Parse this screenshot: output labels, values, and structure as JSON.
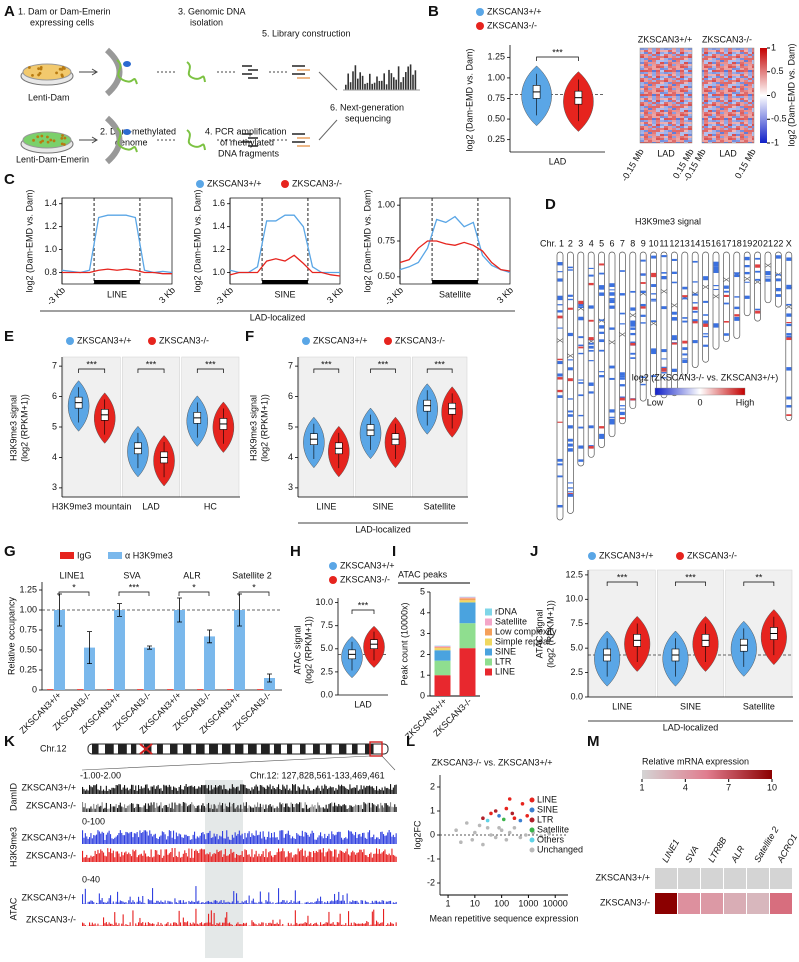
{
  "panels": {
    "A": {
      "letter": "A",
      "texts": [
        "1. Dam or Dam-Emerin",
        "expressing cells",
        "3. Genomic DNA",
        "isolation",
        "5. Library construction",
        "Lenti-Dam",
        "Lenti-Dam-Emerin",
        "6. Next-generation",
        "sequencing",
        "2. Dam-methylated",
        "genome",
        "4. PCR amplification",
        "of methylated",
        "DNA fragments"
      ]
    },
    "B": {
      "letter": "B",
      "ylabel": "log2 (Dam-EMD vs. Dam)",
      "ylim": [
        0.1,
        1.4
      ],
      "yticks": [
        0.25,
        {
          "value": 0.5,
          "label": "0.50"
        },
        0.75,
        {
          "value": 1,
          "label": "1.00"
        },
        1.25
      ],
      "categories": [
        "LAD"
      ],
      "refline": 0.8,
      "series": [
        {
          "name": "ZKSCAN3+/+",
          "color": "#5aa6e6",
          "values": [
            0.83
          ]
        },
        {
          "name": "ZKSCAN3-/-",
          "color": "#e6241e",
          "values": [
            0.76
          ]
        }
      ],
      "sig": [
        "***"
      ],
      "heatmap_titles": [
        "ZKSCAN3+/+",
        "ZKSCAN3-/-"
      ],
      "heatmap_xlabels": [
        "-0.15 Mb",
        "LAD",
        "0.15 Mb"
      ],
      "cbar_ticks": [
        1,
        0.5,
        0,
        -0.5,
        -1
      ],
      "cbar_lim": [
        -1,
        1
      ],
      "cbar_label": "log2 (Dam-EMD vs. Dam)"
    },
    "C": {
      "letter": "C",
      "ylabel": "log2 (Dam-EMD vs. Dam)",
      "xend": [
        "-3 Kb",
        "3 Kb"
      ],
      "footer": "LAD-localized",
      "legend": [
        {
          "name": "ZKSCAN3+/+",
          "color": "#5aa6e6"
        },
        {
          "name": "ZKSCAN3-/-",
          "color": "#e6241e"
        }
      ],
      "plots": [
        {
          "name": "LINE",
          "ylim": [
            0.7,
            1.45
          ],
          "yticks": [
            0.8,
            {
              "value": 1,
              "label": "1.0"
            },
            1.2,
            1.4
          ],
          "series": [
            [
              0.82,
              0.81,
              0.8,
              0.82,
              1.28,
              1.3,
              1.3,
              1.3,
              1.28,
              0.82,
              0.8,
              0.81,
              0.8
            ],
            [
              0.8,
              0.8,
              0.8,
              0.8,
              0.82,
              0.83,
              0.82,
              0.83,
              0.82,
              0.8,
              0.8,
              0.79,
              0.79
            ]
          ]
        },
        {
          "name": "SINE",
          "ylim": [
            0.9,
            1.65
          ],
          "yticks": [
            {
              "value": 1,
              "label": "1.0"
            },
            1.2,
            1.4,
            1.6
          ],
          "series": [
            [
              1.02,
              1.0,
              1.0,
              1.05,
              1.45,
              1.45,
              1.5,
              1.5,
              1.4,
              1.05,
              1.0,
              1.0,
              1.0
            ],
            [
              0.98,
              1.0,
              1.0,
              1.0,
              1.1,
              1.12,
              1.1,
              1.15,
              1.08,
              1.0,
              1.0,
              0.98,
              0.97
            ]
          ]
        },
        {
          "name": "Satellite",
          "ylim": [
            0.45,
            1.05
          ],
          "yticks": [
            {
              "value": 0.5,
              "label": "0.50"
            },
            0.75,
            {
              "value": 1,
              "label": "1.00"
            }
          ],
          "series": [
            [
              0.55,
              0.57,
              0.6,
              0.7,
              0.9,
              0.88,
              0.92,
              0.85,
              0.88,
              0.65,
              0.58,
              0.55,
              0.53
            ],
            [
              0.6,
              0.62,
              0.7,
              0.75,
              0.75,
              0.73,
              0.72,
              0.74,
              0.72,
              0.68,
              0.6,
              0.55,
              0.54
            ]
          ]
        }
      ]
    },
    "D": {
      "letter": "D",
      "title": "H3K9me3 signal",
      "chromosomes": [
        "Chr. 1",
        "2",
        "3",
        "4",
        "5",
        "6",
        "7",
        "8",
        "9",
        "10",
        "11",
        "12",
        "13",
        "14",
        "15",
        "16",
        "17",
        "18",
        "19",
        "20",
        "21",
        "22",
        "X"
      ],
      "cbar_label": "log2 (ZKSCAN3-/- vs. ZKSCAN3+/+)",
      "cbar_labels": [
        "Low",
        "0",
        "High"
      ]
    },
    "E": {
      "letter": "E",
      "ylabel": [
        "H3K9me3 signal",
        "(log2 (RPKM+1))"
      ],
      "ylim": [
        2.7,
        7.3
      ],
      "yticks": [
        3,
        4,
        5,
        6,
        7
      ],
      "categories": [
        "H3K9me3 mountain",
        "LAD",
        "HC"
      ],
      "series": [
        {
          "name": "ZKSCAN3+/+",
          "color": "#5aa6e6",
          "values": [
            5.8,
            4.3,
            5.3
          ]
        },
        {
          "name": "ZKSCAN3-/-",
          "color": "#e6241e",
          "values": [
            5.4,
            4.0,
            5.1
          ]
        }
      ],
      "sig": [
        "***",
        "***",
        "***"
      ]
    },
    "F": {
      "letter": "F",
      "ylabel": [
        "H3K9me3 signal",
        "(log2 (RPKM+1))"
      ],
      "ylim": [
        2.7,
        7.3
      ],
      "yticks": [
        3,
        4,
        5,
        6,
        7
      ],
      "categories": [
        "LINE",
        "SINE",
        "Satellite"
      ],
      "footer": "LAD-localized",
      "series": [
        {
          "name": "ZKSCAN3+/+",
          "color": "#5aa6e6",
          "values": [
            4.6,
            4.9,
            5.7
          ]
        },
        {
          "name": "ZKSCAN3-/-",
          "color": "#e6241e",
          "values": [
            4.3,
            4.6,
            5.6
          ]
        }
      ],
      "sig": [
        "***",
        "***",
        "***"
      ]
    },
    "G": {
      "letter": "G",
      "ylabel": "Relative occupancy",
      "ylim": [
        0,
        1.35
      ],
      "yticks": [
        0,
        0.25,
        {
          "value": 0.5,
          "label": "0.50"
        },
        0.75,
        {
          "value": 1,
          "label": "1.00"
        },
        1.25
      ],
      "refline": 1,
      "groups": [
        "LINE1",
        "SVA",
        "ALR",
        "Satellite 2"
      ],
      "categories": [
        "ZKSCAN3+/+",
        "ZKSCAN3-/-",
        "ZKSCAN3+/+",
        "ZKSCAN3-/-",
        "ZKSCAN3+/+",
        "ZKSCAN3-/-",
        "ZKSCAN3+/+",
        "ZKSCAN3-/-"
      ],
      "series": [
        {
          "name": "IgG",
          "color": "#e6241e",
          "values": [
            0.01,
            0.01,
            0.01,
            0.01,
            0.01,
            0.01,
            0.01,
            0.01
          ]
        },
        {
          "name": "α H3K9me3",
          "color": "#7ab8ec",
          "values": [
            1.0,
            0.53,
            1.0,
            0.53,
            1.0,
            0.67,
            1.0,
            0.15
          ],
          "errors": [
            0.2,
            0.2,
            0.08,
            0.02,
            0.15,
            0.08,
            0.2,
            0.05
          ]
        }
      ],
      "sig": [
        "*",
        "***",
        "*",
        "*"
      ]
    },
    "H": {
      "letter": "H",
      "ylabel": [
        "ATAC signal",
        "(log2 (RPKM+1))"
      ],
      "ylim": [
        0,
        10.5
      ],
      "yticks": [
        {
          "value": 0,
          "label": "0.0"
        },
        2.5,
        {
          "value": 5,
          "label": "5.0"
        },
        7.5,
        {
          "value": 10,
          "label": "10.0"
        }
      ],
      "categories": [
        "LAD"
      ],
      "refline": 4.4,
      "series": [
        {
          "name": "ZKSCAN3+/+",
          "color": "#5aa6e6",
          "values": [
            4.4
          ]
        },
        {
          "name": "ZKSCAN3-/-",
          "color": "#e6241e",
          "values": [
            5.5
          ]
        }
      ],
      "sig": [
        "***"
      ]
    },
    "I": {
      "letter": "I",
      "type": "bar",
      "title": "ATAC peaks",
      "ylabel": "Peak count (10000x)",
      "ylim": [
        0,
        5
      ],
      "yticks": [
        0,
        1,
        2,
        3,
        4,
        5
      ],
      "categories": [
        "ZKSCAN3+/+",
        "ZKSCAN3-/-"
      ],
      "series": [
        {
          "name": "LINE",
          "color": "#e8282e",
          "values": [
            1.0,
            2.3
          ]
        },
        {
          "name": "LTR",
          "color": "#8fde8f",
          "values": [
            0.7,
            1.2
          ]
        },
        {
          "name": "SINE",
          "color": "#4aa3df",
          "values": [
            0.5,
            1.0
          ]
        },
        {
          "name": "Simple repeat",
          "color": "#f0d860",
          "values": [
            0.1,
            0.1
          ]
        },
        {
          "name": "Low complexity",
          "color": "#f5a05a",
          "values": [
            0.05,
            0.1
          ]
        },
        {
          "name": "Satellite",
          "color": "#f4a6c8",
          "values": [
            0.05,
            0.05
          ]
        },
        {
          "name": "rDNA",
          "color": "#7fd6e8",
          "values": [
            0.02,
            0.02
          ]
        }
      ]
    },
    "J": {
      "letter": "J",
      "ylabel": [
        "ATAC signal",
        "(log2 (RPKM+1))"
      ],
      "ylim": [
        0,
        13
      ],
      "yticks": [
        {
          "value": 0,
          "label": "0.0"
        },
        2.5,
        {
          "value": 5,
          "label": "5.0"
        },
        7.5,
        {
          "value": 10,
          "label": "10.0"
        },
        12.5
      ],
      "categories": [
        "LINE",
        "SINE",
        "Satellite"
      ],
      "refline": 4.3,
      "footer": "LAD-localized",
      "series": [
        {
          "name": "ZKSCAN3+/+",
          "color": "#5aa6e6",
          "values": [
            4.3,
            4.3,
            5.3
          ]
        },
        {
          "name": "ZKSCAN3-/-",
          "color": "#e6241e",
          "values": [
            5.8,
            5.8,
            6.5
          ]
        }
      ],
      "sig": [
        "***",
        "***",
        "**"
      ]
    },
    "K": {
      "letter": "K",
      "chrom": "Chr.12",
      "range_damid": "-1.00-2.00",
      "locus": "Chr.12: 127,828,561-133,469,461",
      "range_h3": "0-100",
      "range_atac": "0-40",
      "tracks": [
        "DamID",
        "H3K9me3",
        "ATAC"
      ],
      "rows": [
        "ZKSCAN3+/+",
        "ZKSCAN3-/-"
      ]
    },
    "L": {
      "letter": "L",
      "type": "scatter",
      "title": "ZKSCAN3-/- vs. ZKSCAN3+/+",
      "ylabel": "log2FC",
      "xlabel": "Mean repetitive sequence expression",
      "xscale": "log",
      "xlim": [
        0.5,
        30000
      ],
      "xticks": [
        1,
        10,
        100,
        1000,
        10000
      ],
      "ylim": [
        -2.5,
        2.5
      ],
      "yticks": [
        -2,
        -1,
        0,
        1,
        2
      ],
      "series": [
        {
          "name": "LINE",
          "color": "#e6241e",
          "x": [
            40,
            150,
            300,
            600,
            900,
            200
          ],
          "y": [
            0.9,
            1.1,
            0.7,
            1.3,
            0.8,
            1.5
          ]
        },
        {
          "name": "SINE",
          "color": "#3b7fd0",
          "x": [
            80,
            500
          ],
          "y": [
            0.8,
            0.6
          ]
        },
        {
          "name": "LTR",
          "color": "#b0202a",
          "x": [
            20,
            60,
            250
          ],
          "y": [
            0.7,
            1.0,
            0.9
          ]
        },
        {
          "name": "Satellite",
          "color": "#3cb44b",
          "x": [
            120
          ],
          "y": [
            0.65
          ]
        },
        {
          "name": "Others",
          "color": "#5fd3e6",
          "x": [
            30
          ],
          "y": [
            0.6
          ]
        },
        {
          "name": "Unchanged",
          "color": "#b8b8b8",
          "x": [
            2,
            3,
            5,
            8,
            10,
            15,
            20,
            30,
            40,
            60,
            80,
            100,
            150,
            200,
            300,
            500,
            800,
            1500,
            3000,
            6000
          ],
          "y": [
            0.2,
            -0.3,
            0.5,
            -0.2,
            0.1,
            0.4,
            -0.4,
            0.3,
            0.0,
            -0.1,
            0.3,
            0.2,
            -0.2,
            0.1,
            0.3,
            -0.1,
            0.0,
            0.1,
            -0.05,
            0.05
          ]
        }
      ]
    },
    "M": {
      "letter": "M",
      "type": "heatmap",
      "title": "Relative mRNA expression",
      "clim": [
        1,
        10
      ],
      "cbar_ticks": [
        1,
        4,
        7,
        10
      ],
      "columns": [
        "LINE1",
        "SVA",
        "LTR8B",
        "ALR",
        "Satellite 2",
        "ACRO1"
      ],
      "rows": [
        "ZKSCAN3+/+",
        "ZKSCAN3-/-"
      ],
      "values": [
        [
          1,
          1,
          1,
          1,
          1,
          1
        ],
        [
          10,
          4.5,
          4,
          3,
          2.5,
          6
        ]
      ]
    }
  }
}
